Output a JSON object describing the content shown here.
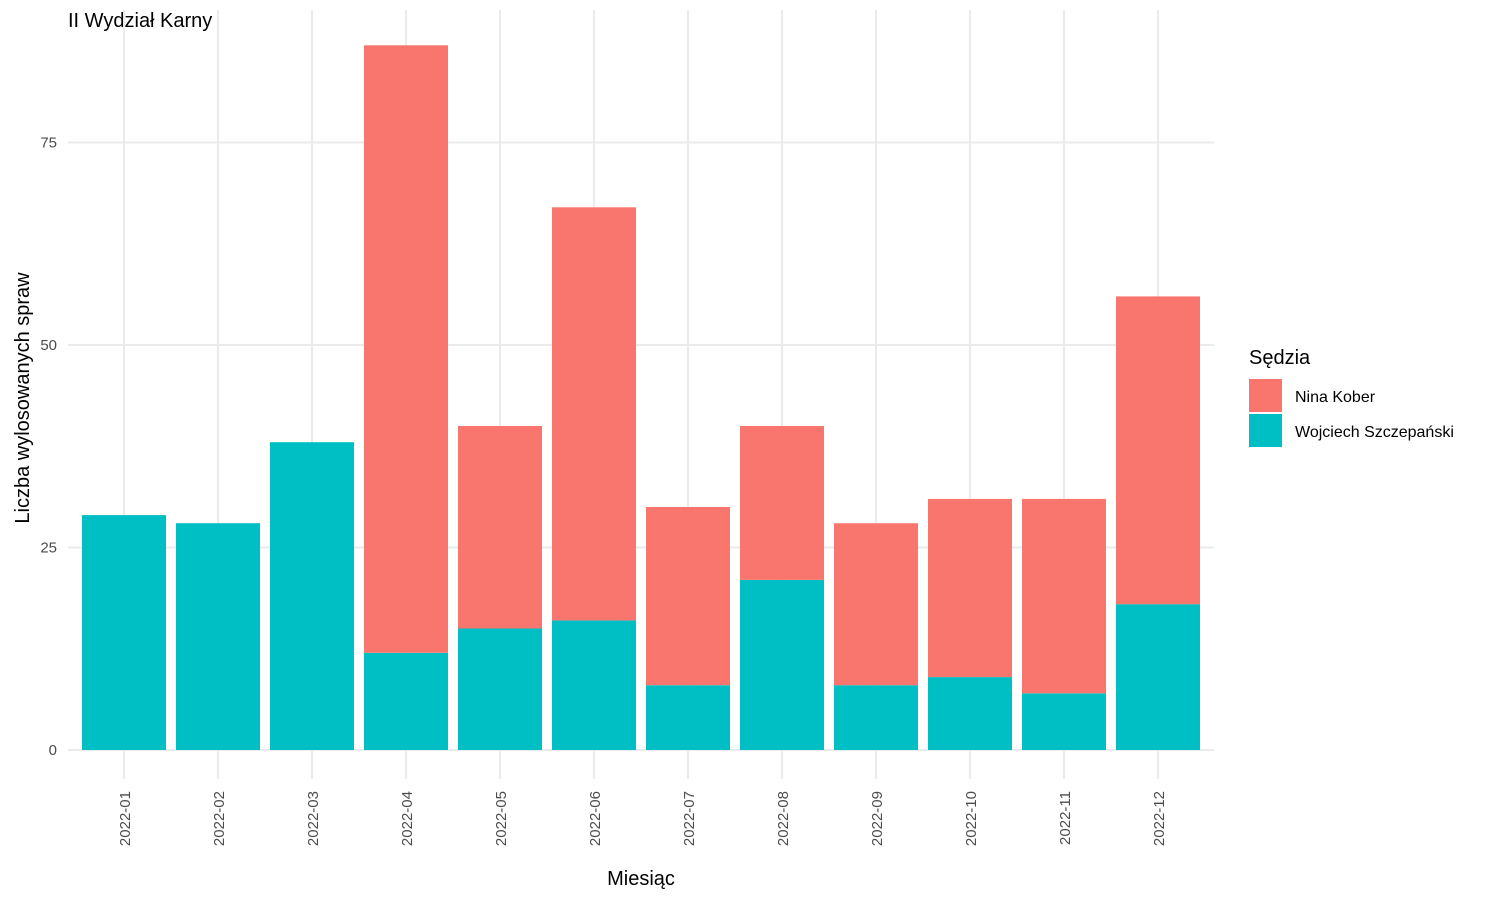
{
  "chart_data": {
    "type": "bar",
    "stacked": true,
    "title": "II Wydział Karny",
    "xlabel": "Miesiąc",
    "ylabel": "Liczba wylosowanych spraw",
    "ylim": [
      0,
      88
    ],
    "yticks": [
      0,
      25,
      50,
      75
    ],
    "grid": true,
    "legend_placement": "right",
    "legend_title": "Sędzia",
    "categories": [
      "2022-01",
      "2022-02",
      "2022-03",
      "2022-04",
      "2022-05",
      "2022-06",
      "2022-07",
      "2022-08",
      "2022-09",
      "2022-10",
      "2022-11",
      "2022-12"
    ],
    "series": [
      {
        "name": "Nina Kober",
        "color": "#F8766D",
        "values": [
          0,
          0,
          0,
          75,
          25,
          51,
          22,
          19,
          20,
          22,
          24,
          38
        ]
      },
      {
        "name": "Wojciech Szczepański",
        "color": "#00BFC4",
        "values": [
          29,
          28,
          38,
          12,
          15,
          16,
          8,
          21,
          8,
          9,
          7,
          18
        ]
      }
    ]
  }
}
